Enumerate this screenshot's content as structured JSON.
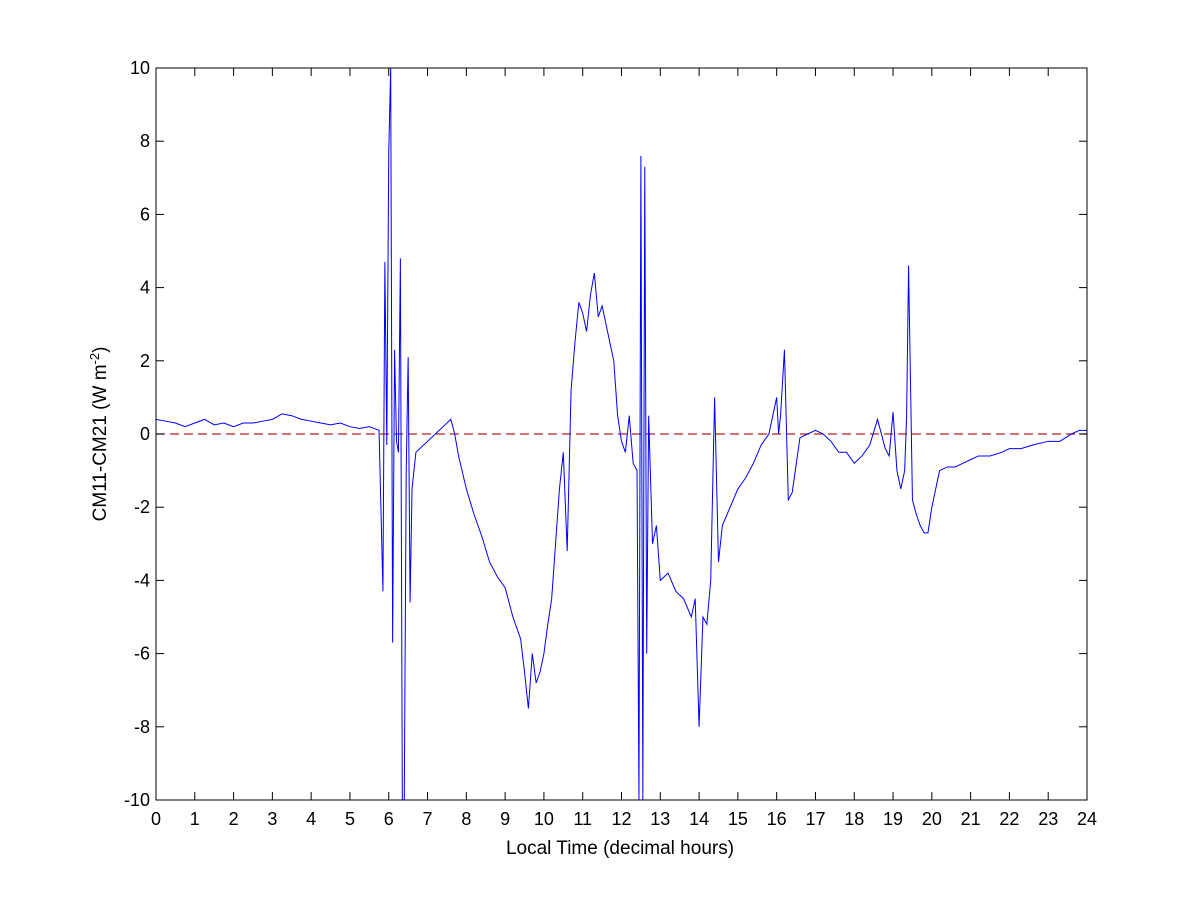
{
  "chart_data": {
    "type": "line",
    "title": "",
    "xlabel": "Local Time (decimal hours)",
    "ylabel_main": "CM11-CM21 (W m",
    "ylabel_sup": "-2",
    "ylabel_close": ")",
    "xlim": [
      0,
      24
    ],
    "ylim": [
      -10,
      10
    ],
    "xticks": [
      0,
      1,
      2,
      3,
      4,
      5,
      6,
      7,
      8,
      9,
      10,
      11,
      12,
      13,
      14,
      15,
      16,
      17,
      18,
      19,
      20,
      21,
      22,
      23,
      24
    ],
    "yticks": [
      -10,
      -8,
      -6,
      -4,
      -2,
      0,
      2,
      4,
      6,
      8,
      10
    ],
    "grid": false,
    "colors": {
      "series": "#0000ff",
      "reference": "#b22222",
      "axes": "#000000"
    },
    "reference_line": {
      "y": 0,
      "style": "dashed"
    },
    "series": [
      {
        "x": [
          0,
          0.25,
          0.5,
          0.75,
          1,
          1.25,
          1.5,
          1.75,
          2,
          2.25,
          2.5,
          2.75,
          3,
          3.25,
          3.5,
          3.75,
          4,
          4.25,
          4.5,
          4.75,
          5,
          5.25,
          5.5,
          5.75,
          5.85,
          5.9,
          5.95,
          6.0,
          6.05,
          6.1,
          6.15,
          6.2,
          6.25,
          6.3,
          6.35,
          6.4,
          6.45,
          6.5,
          6.55,
          6.6,
          6.7,
          6.8,
          7.0,
          7.2,
          7.4,
          7.6,
          7.7,
          7.8,
          8.0,
          8.2,
          8.4,
          8.6,
          8.8,
          9.0,
          9.2,
          9.4,
          9.5,
          9.6,
          9.7,
          9.8,
          9.9,
          10.0,
          10.1,
          10.2,
          10.3,
          10.4,
          10.5,
          10.6,
          10.7,
          10.8,
          10.9,
          11.0,
          11.1,
          11.2,
          11.3,
          11.4,
          11.5,
          11.6,
          11.7,
          11.8,
          11.9,
          12.0,
          12.1,
          12.2,
          12.3,
          12.4,
          12.45,
          12.5,
          12.55,
          12.6,
          12.65,
          12.7,
          12.8,
          12.9,
          13.0,
          13.2,
          13.4,
          13.6,
          13.8,
          13.9,
          14.0,
          14.1,
          14.2,
          14.3,
          14.4,
          14.5,
          14.6,
          14.8,
          15.0,
          15.2,
          15.4,
          15.6,
          15.8,
          16.0,
          16.05,
          16.1,
          16.2,
          16.3,
          16.4,
          16.6,
          16.8,
          17.0,
          17.2,
          17.4,
          17.6,
          17.8,
          18.0,
          18.2,
          18.4,
          18.6,
          18.8,
          18.9,
          19.0,
          19.1,
          19.2,
          19.3,
          19.35,
          19.4,
          19.5,
          19.6,
          19.7,
          19.8,
          19.9,
          20.0,
          20.1,
          20.2,
          20.4,
          20.6,
          20.8,
          21.0,
          21.2,
          21.5,
          21.8,
          22.0,
          22.3,
          22.6,
          23.0,
          23.3,
          23.6,
          23.8,
          24.0
        ],
        "y": [
          0.4,
          0.35,
          0.3,
          0.2,
          0.3,
          0.4,
          0.25,
          0.3,
          0.2,
          0.3,
          0.3,
          0.35,
          0.4,
          0.55,
          0.5,
          0.4,
          0.35,
          0.3,
          0.25,
          0.3,
          0.2,
          0.15,
          0.2,
          0.1,
          -4.3,
          4.7,
          -0.3,
          7.7,
          10.0,
          -5.7,
          2.3,
          -0.2,
          -0.5,
          4.8,
          -10.0,
          -10.0,
          -1.0,
          2.1,
          -4.6,
          -1.5,
          -0.5,
          -0.4,
          -0.2,
          0.0,
          0.2,
          0.4,
          0.0,
          -0.6,
          -1.5,
          -2.2,
          -2.8,
          -3.5,
          -3.9,
          -4.2,
          -5.0,
          -5.6,
          -6.5,
          -7.5,
          -6.0,
          -6.8,
          -6.5,
          -6.0,
          -5.2,
          -4.5,
          -3.0,
          -1.5,
          -0.5,
          -3.2,
          1.2,
          2.5,
          3.6,
          3.3,
          2.8,
          3.8,
          4.4,
          3.2,
          3.5,
          3.0,
          2.5,
          2.0,
          0.5,
          -0.2,
          -0.5,
          0.5,
          -0.8,
          -1.0,
          -10.0,
          7.6,
          -10.0,
          7.3,
          -6.0,
          0.5,
          -3.0,
          -2.5,
          -4.0,
          -3.8,
          -4.3,
          -4.5,
          -5.0,
          -4.5,
          -8.0,
          -5.0,
          -5.2,
          -4.0,
          1.0,
          -3.5,
          -2.5,
          -2.0,
          -1.5,
          -1.2,
          -0.8,
          -0.3,
          0.0,
          1.0,
          0.0,
          0.5,
          2.3,
          -1.8,
          -1.6,
          -0.1,
          0.0,
          0.1,
          0.0,
          -0.2,
          -0.5,
          -0.5,
          -0.8,
          -0.6,
          -0.3,
          0.4,
          -0.4,
          -0.6,
          0.6,
          -1.0,
          -1.5,
          -1.0,
          0.5,
          4.6,
          -1.8,
          -2.2,
          -2.5,
          -2.7,
          -2.7,
          -2.0,
          -1.5,
          -1.0,
          -0.9,
          -0.9,
          -0.8,
          -0.7,
          -0.6,
          -0.6,
          -0.5,
          -0.4,
          -0.4,
          -0.3,
          -0.2,
          -0.2,
          0.0,
          0.1,
          0.1
        ]
      }
    ]
  }
}
